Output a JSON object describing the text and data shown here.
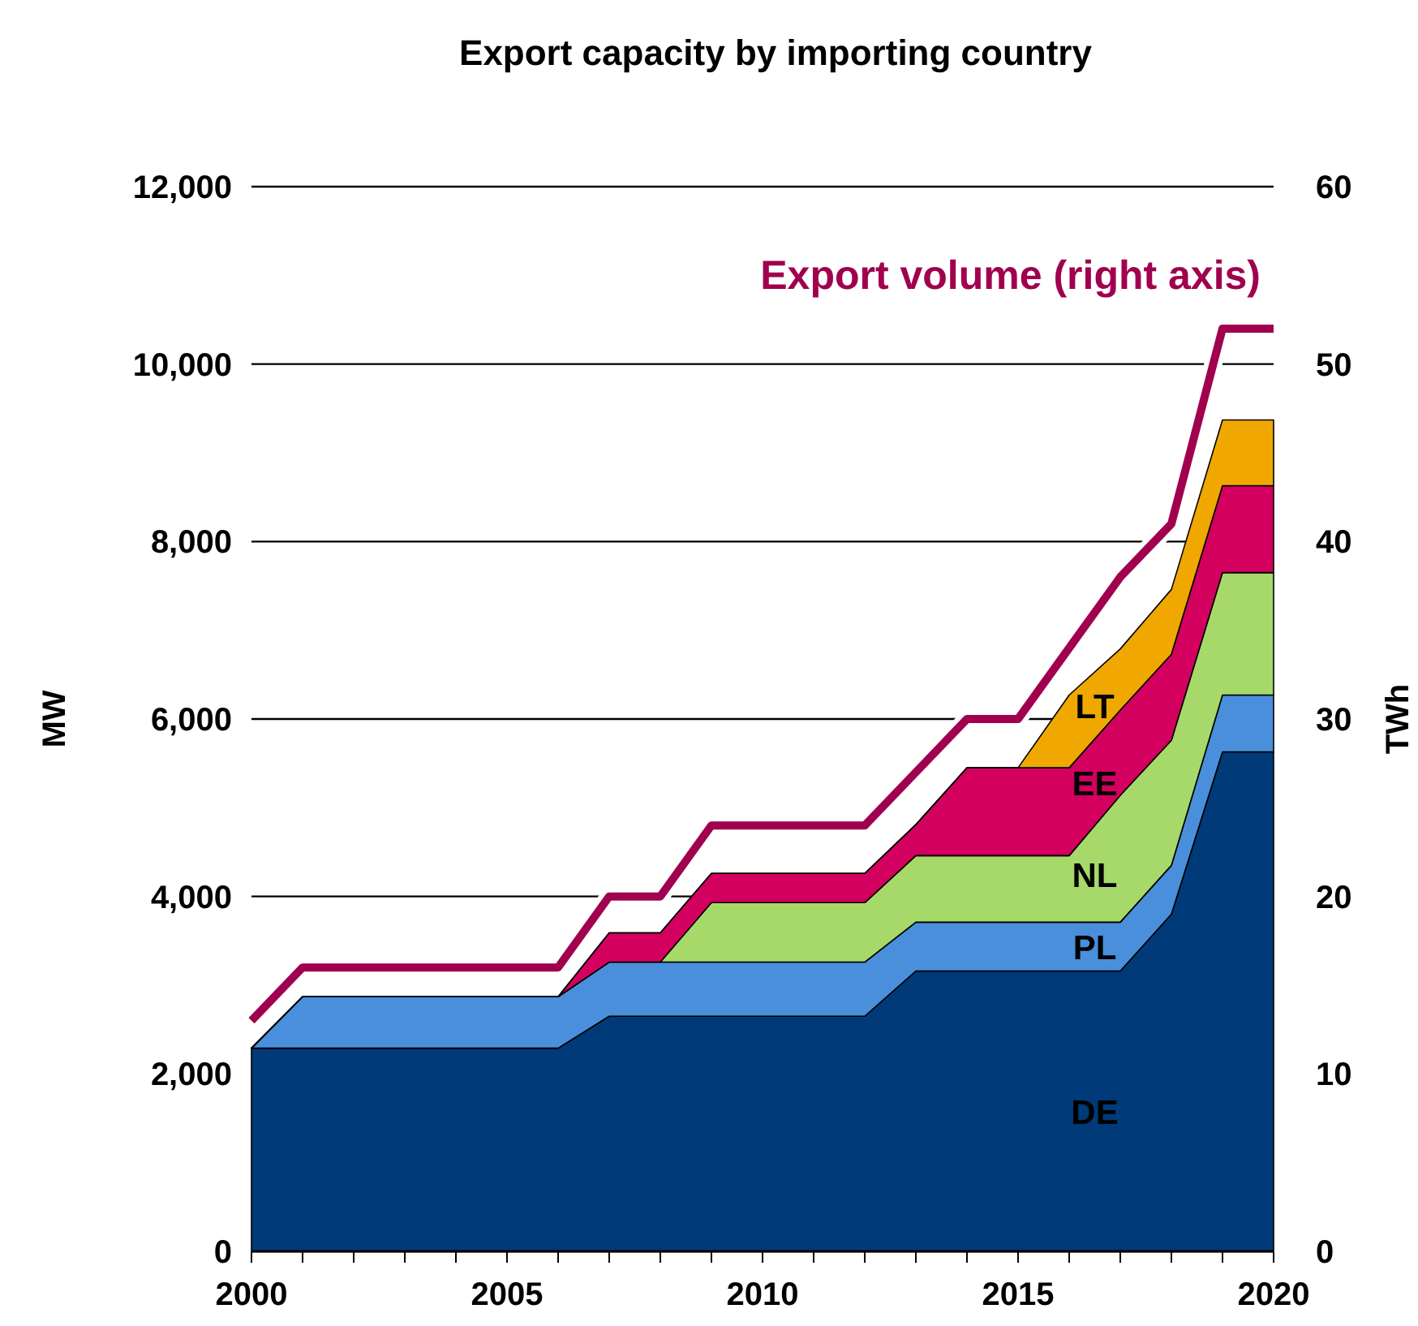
{
  "chart_data": {
    "type": "area",
    "stacked": true,
    "title": "Export capacity by importing country",
    "ylabel": "MW",
    "y2label": "TWh",
    "x": [
      2000,
      2001,
      2002,
      2003,
      2004,
      2005,
      2006,
      2007,
      2008,
      2009,
      2010,
      2011,
      2012,
      2013,
      2014,
      2015,
      2016,
      2017,
      2018,
      2019,
      2020
    ],
    "xlim": [
      2000,
      2020
    ],
    "xticks": [
      2000,
      {
        "value": 2001,
        "label": null
      },
      {
        "value": 2002,
        "label": null
      },
      {
        "value": 2003,
        "label": null
      },
      {
        "value": 2004,
        "label": null
      },
      2005,
      {
        "value": 2006,
        "label": null
      },
      {
        "value": 2007,
        "label": null
      },
      {
        "value": 2008,
        "label": null
      },
      {
        "value": 2009,
        "label": null
      },
      2010,
      {
        "value": 2011,
        "label": null
      },
      {
        "value": 2012,
        "label": null
      },
      {
        "value": 2013,
        "label": null
      },
      {
        "value": 2014,
        "label": null
      },
      2015,
      {
        "value": 2016,
        "label": null
      },
      {
        "value": 2017,
        "label": null
      },
      {
        "value": 2018,
        "label": null
      },
      {
        "value": 2019,
        "label": null
      },
      2020
    ],
    "ylim": [
      0,
      12000
    ],
    "yticks": [
      0,
      {
        "value": 2000,
        "label": "2,000"
      },
      {
        "value": 4000,
        "label": "4,000"
      },
      {
        "value": 6000,
        "label": "6,000"
      },
      {
        "value": 8000,
        "label": "8,000"
      },
      {
        "value": 10000,
        "label": "10,000"
      },
      {
        "value": 12000,
        "label": "12,000"
      }
    ],
    "y2lim": [
      0,
      60
    ],
    "y2ticks": [
      0,
      10,
      20,
      30,
      40,
      50,
      60
    ],
    "grid": "y",
    "series": [
      {
        "name": "DE",
        "color": "#003a78",
        "values": [
          2290,
          2290,
          2290,
          2290,
          2290,
          2290,
          2290,
          2650,
          2650,
          2650,
          2650,
          2650,
          2650,
          3160,
          3160,
          3160,
          3160,
          3160,
          3800,
          5630,
          5630
        ]
      },
      {
        "name": "PL",
        "color": "#4a8fdc",
        "values": [
          0,
          580,
          580,
          580,
          580,
          580,
          580,
          610,
          610,
          610,
          610,
          610,
          610,
          550,
          550,
          550,
          550,
          550,
          550,
          640,
          640
        ]
      },
      {
        "name": "NL",
        "color": "#a6d96a",
        "values": [
          0,
          0,
          0,
          0,
          0,
          0,
          0,
          0,
          0,
          670,
          670,
          670,
          670,
          750,
          750,
          750,
          750,
          1430,
          1410,
          1380,
          1380
        ]
      },
      {
        "name": "EE",
        "color": "#d4005f",
        "values": [
          0,
          0,
          0,
          0,
          0,
          0,
          0,
          330,
          330,
          330,
          330,
          330,
          330,
          350,
          990,
          990,
          990,
          960,
          970,
          980,
          980
        ]
      },
      {
        "name": "LT",
        "color": "#f0a800",
        "values": [
          0,
          0,
          0,
          0,
          0,
          0,
          0,
          0,
          0,
          0,
          0,
          0,
          0,
          0,
          0,
          0,
          820,
          690,
          730,
          740,
          740
        ]
      },
      {
        "name": "Export volume (right axis)",
        "type": "line",
        "axis": "y2",
        "color": "#a0004e",
        "values": [
          13,
          16,
          16,
          16,
          16,
          16,
          16,
          20,
          20,
          24,
          24,
          24,
          24,
          27,
          30,
          30,
          34,
          38,
          41,
          52,
          52
        ]
      }
    ]
  }
}
